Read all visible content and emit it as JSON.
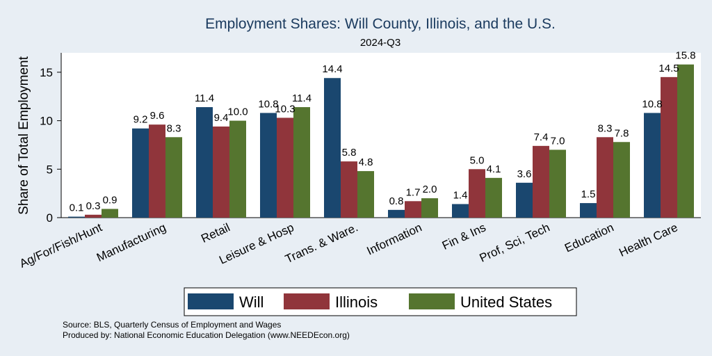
{
  "chart_data": {
    "type": "bar",
    "title": "Employment Shares: Will County, Illinois, and the U.S.",
    "subtitle": "2024-Q3",
    "xlabel": "",
    "ylabel": "Share of Total Employment",
    "ylim": [
      0,
      17
    ],
    "yticks": [
      0,
      5,
      10,
      15
    ],
    "grid": false,
    "legend_position": "bottom",
    "categories": [
      "Ag/For/Fish/Hunt",
      "Manufacturing",
      "Retail",
      "Leisure & Hosp",
      "Trans. & Ware.",
      "Information",
      "Fin & Ins",
      "Prof, Sci, Tech",
      "Education",
      "Health Care"
    ],
    "series": [
      {
        "name": "Will",
        "color": "#1a476f",
        "values": [
          0.1,
          9.2,
          11.4,
          10.8,
          14.4,
          0.8,
          1.4,
          3.6,
          1.5,
          10.8
        ]
      },
      {
        "name": "Illinois",
        "color": "#90353b",
        "values": [
          0.3,
          9.6,
          9.4,
          10.3,
          5.8,
          1.7,
          5.0,
          7.4,
          8.3,
          14.5
        ]
      },
      {
        "name": "United States",
        "color": "#55752f",
        "values": [
          0.9,
          8.3,
          10.0,
          11.4,
          4.8,
          2.0,
          4.1,
          7.0,
          7.8,
          15.8
        ]
      }
    ]
  },
  "footer": {
    "source": "Source: BLS, Quarterly Census of Employment and Wages",
    "produced": "Produced by: National Economic Education Delegation (www.NEEDEcon.org)"
  }
}
